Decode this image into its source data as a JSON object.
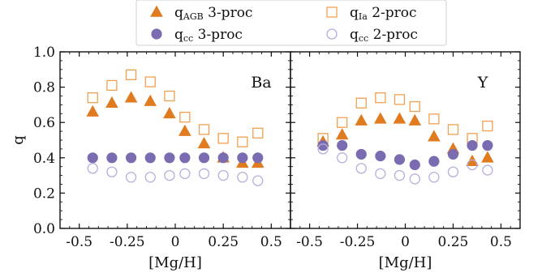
{
  "chart_data": {
    "type": "scatter",
    "ylabel": "q",
    "ylim": [
      0.0,
      1.0
    ],
    "yticks": [
      "0.0",
      "0.2",
      "0.4",
      "0.6",
      "0.8",
      "1.0"
    ],
    "yticks_values": [
      0.0,
      0.2,
      0.4,
      0.6,
      0.8,
      1.0
    ],
    "xlim": [
      -0.6,
      0.6
    ],
    "xticks": [
      "-0.5",
      "-0.25",
      "0",
      "0.25",
      "0.5"
    ],
    "xticks_values": [
      -0.5,
      -0.25,
      0.0,
      0.25,
      0.5
    ],
    "legend": {
      "placement": "top-center",
      "entries": [
        {
          "key": "qagb3",
          "main": "q",
          "sub": "AGB",
          "rest": " 3-proc",
          "marker": "triangle-filled",
          "color": "#e07b20"
        },
        {
          "key": "qia2",
          "main": "q",
          "sub": "Ia",
          "rest": " 2-proc",
          "marker": "square-open",
          "color": "#f0a050"
        },
        {
          "key": "qcc3",
          "main": "q",
          "sub": "cc",
          "rest": " 3-proc",
          "marker": "circle-filled",
          "color": "#7b6bb0"
        },
        {
          "key": "qcc2",
          "main": "q",
          "sub": "cc",
          "rest": " 2-proc",
          "marker": "circle-open",
          "color": "#b5aedb"
        }
      ]
    },
    "panels": [
      {
        "label": "Ba",
        "xlabel": "[Mg/H]",
        "x": [
          -0.43,
          -0.33,
          -0.23,
          -0.13,
          -0.03,
          0.05,
          0.15,
          0.25,
          0.35,
          0.43
        ],
        "series": [
          {
            "key": "qia2",
            "values": [
              0.74,
              0.81,
              0.87,
              0.83,
              0.75,
              0.63,
              0.56,
              0.51,
              0.49,
              0.54
            ]
          },
          {
            "key": "qagb3",
            "values": [
              0.66,
              0.71,
              0.74,
              0.72,
              0.65,
              0.55,
              0.48,
              0.4,
              0.37,
              0.37
            ]
          },
          {
            "key": "qcc3",
            "values": [
              0.4,
              0.4,
              0.4,
              0.4,
              0.4,
              0.4,
              0.4,
              0.4,
              0.4,
              0.4
            ]
          },
          {
            "key": "qcc2",
            "values": [
              0.34,
              0.32,
              0.29,
              0.29,
              0.3,
              0.31,
              0.31,
              0.3,
              0.29,
              0.27
            ]
          }
        ]
      },
      {
        "label": "Y",
        "xlabel": "[Mg/H]",
        "x": [
          -0.43,
          -0.33,
          -0.23,
          -0.13,
          -0.03,
          0.05,
          0.15,
          0.25,
          0.35,
          0.43
        ],
        "series": [
          {
            "key": "qia2",
            "values": [
              0.51,
              0.6,
              0.71,
              0.74,
              0.73,
              0.69,
              0.62,
              0.56,
              0.51,
              0.58
            ]
          },
          {
            "key": "qagb3",
            "values": [
              0.49,
              0.53,
              0.61,
              0.62,
              0.62,
              0.61,
              0.52,
              0.45,
              0.38,
              0.4
            ]
          },
          {
            "key": "qcc3",
            "values": [
              0.47,
              0.47,
              0.42,
              0.41,
              0.39,
              0.36,
              0.38,
              0.42,
              0.47,
              0.47
            ]
          },
          {
            "key": "qcc2",
            "values": [
              0.45,
              0.4,
              0.34,
              0.31,
              0.3,
              0.28,
              0.29,
              0.32,
              0.36,
              0.33
            ]
          }
        ]
      }
    ]
  }
}
